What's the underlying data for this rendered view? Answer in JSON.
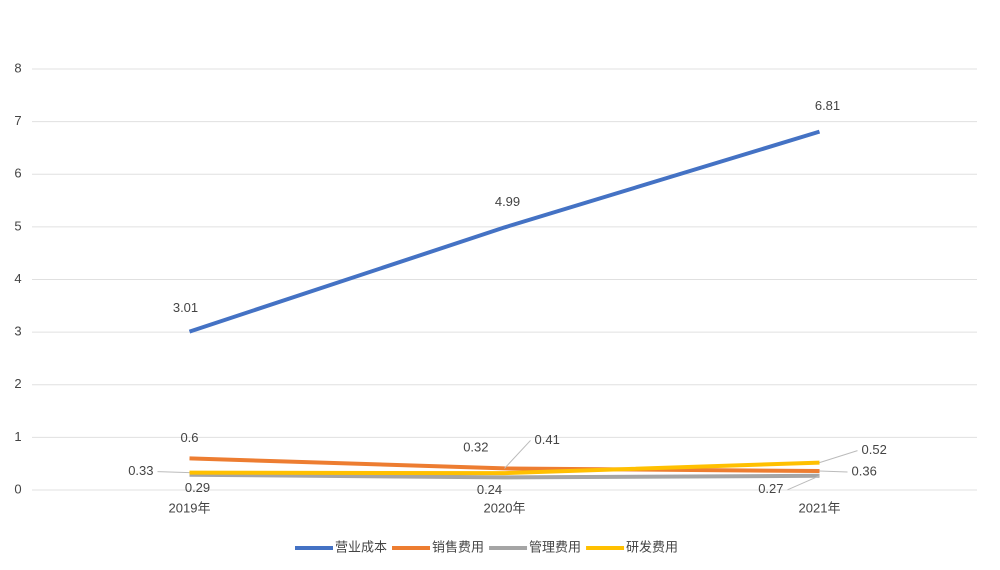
{
  "chart_data": {
    "type": "line",
    "categories": [
      "2019年",
      "2020年",
      "2021年"
    ],
    "series": [
      {
        "name": "营业成本",
        "color": "#4472c4",
        "values": [
          3.01,
          4.99,
          6.81
        ]
      },
      {
        "name": "销售费用",
        "color": "#ed7d31",
        "values": [
          0.6,
          0.41,
          0.36
        ]
      },
      {
        "name": "管理费用",
        "color": "#a5a5a5",
        "values": [
          0.29,
          0.24,
          0.27
        ]
      },
      {
        "name": "研发费用",
        "color": "#ffc000",
        "values": [
          0.33,
          0.32,
          0.52
        ]
      }
    ],
    "ylim": [
      0,
      8
    ],
    "yticks": [
      0,
      1,
      2,
      3,
      4,
      5,
      6,
      7,
      8
    ],
    "grid": true,
    "legend": "bottom"
  }
}
